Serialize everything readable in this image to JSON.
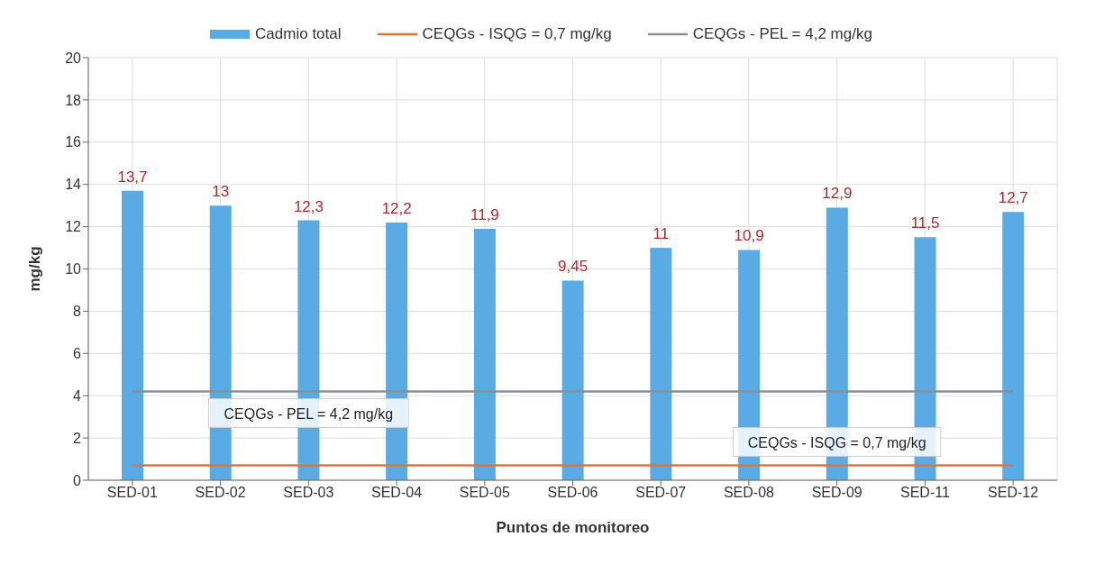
{
  "chart_data": {
    "type": "bar",
    "categories": [
      "SED-01",
      "SED-02",
      "SED-03",
      "SED-04",
      "SED-05",
      "SED-06",
      "SED-07",
      "SED-08",
      "SED-09",
      "SED-11",
      "SED-12"
    ],
    "series": [
      {
        "name": "Cadmio total",
        "color": "#5aaae3",
        "values": [
          13.7,
          13,
          12.3,
          12.2,
          11.9,
          9.45,
          11,
          10.9,
          12.9,
          11.5,
          12.7
        ],
        "value_labels": [
          "13,7",
          "13",
          "12,3",
          "12,2",
          "11,9",
          "9,45",
          "11",
          "10,9",
          "12,9",
          "11,5",
          "12,7"
        ]
      },
      {
        "name": "CEQGs - ISQG = 0,7 mg/kg",
        "type": "line",
        "color": "#e8732a",
        "values": [
          0.7,
          0.7,
          0.7,
          0.7,
          0.7,
          0.7,
          0.7,
          0.7,
          0.7,
          0.7,
          0.7
        ]
      },
      {
        "name": "CEQGs - PEL = 4,2 mg/kg",
        "type": "line",
        "color": "#8a8f99",
        "values": [
          4.2,
          4.2,
          4.2,
          4.2,
          4.2,
          4.2,
          4.2,
          4.2,
          4.2,
          4.2,
          4.2
        ]
      }
    ],
    "xlabel": "Puntos de monitoreo",
    "ylabel": "mg/kg",
    "ylim": [
      0,
      20
    ],
    "yticks": [
      0,
      2,
      4,
      6,
      8,
      10,
      12,
      14,
      16,
      18,
      20
    ],
    "grid": true,
    "legend": "top",
    "marker": "none",
    "annotations": [
      {
        "text": "CEQGs - PEL = 4,2 mg/kg",
        "x": "SED-03",
        "y": 4.2
      },
      {
        "text": "CEQGs - ISQG = 0,7 mg/kg",
        "x": "SED-09",
        "y": 0.7
      }
    ]
  }
}
